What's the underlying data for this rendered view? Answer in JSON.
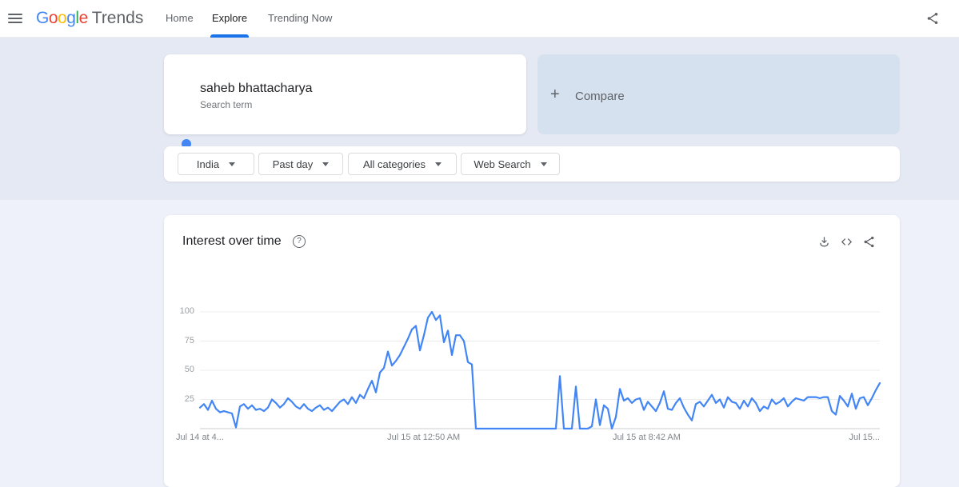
{
  "nav": {
    "brand": {
      "letters": [
        {
          "ch": "G",
          "color": "#4285F4"
        },
        {
          "ch": "o",
          "color": "#EA4335"
        },
        {
          "ch": "o",
          "color": "#FBBC05"
        },
        {
          "ch": "g",
          "color": "#4285F4"
        },
        {
          "ch": "l",
          "color": "#34A853"
        },
        {
          "ch": "e",
          "color": "#EA4335"
        }
      ],
      "product": "Trends"
    },
    "items": [
      {
        "label": "Home",
        "active": false
      },
      {
        "label": "Explore",
        "active": true
      },
      {
        "label": "Trending Now",
        "active": false
      }
    ]
  },
  "search_card": {
    "term": "saheb bhattacharya",
    "subtitle": "Search term",
    "dot_color": "#4285f4"
  },
  "compare_card": {
    "plus": "+",
    "label": "Compare"
  },
  "filters": [
    {
      "label": "India"
    },
    {
      "label": "Past day"
    },
    {
      "label": "All categories"
    },
    {
      "label": "Web Search"
    }
  ],
  "chart_card": {
    "title": "Interest over time",
    "help": "?",
    "action_icons": [
      "download-icon",
      "embed-icon",
      "share-icon"
    ]
  },
  "colors": {
    "accent_blue": "#1a73e8",
    "trend_line": "#4285f4",
    "compare_bg": "#d6e1ef",
    "page_bg_top": "#e5e9f4",
    "page_bg_bottom": "#eef1f9"
  },
  "chart_data": {
    "type": "line",
    "title": "Interest over time",
    "xlabel": "",
    "ylabel": "",
    "ylim": [
      0,
      100
    ],
    "grid": "horizontal",
    "legend_position": "none",
    "y_ticks": [
      100,
      75,
      50,
      25
    ],
    "x_ticks": [
      {
        "label": "Jul 14 at 4...",
        "pos": 0
      },
      {
        "label": "Jul 15 at 12:50 AM",
        "pos": 0.329
      },
      {
        "label": "Jul 15 at 8:42 AM",
        "pos": 0.657
      },
      {
        "label": "Jul 15...",
        "pos": 1
      }
    ],
    "series": [
      {
        "name": "saheb bhattacharya",
        "color": "#4285f4",
        "values": [
          18,
          21,
          16,
          24,
          17,
          14,
          15,
          14,
          13,
          1,
          19,
          21,
          17,
          20,
          16,
          17,
          15,
          18,
          25,
          22,
          18,
          21,
          26,
          23,
          19,
          17,
          21,
          17,
          15,
          18,
          20,
          16,
          18,
          15,
          19,
          23,
          25,
          21,
          27,
          22,
          29,
          26,
          34,
          41,
          31,
          48,
          52,
          66,
          54,
          58,
          63,
          70,
          77,
          85,
          88,
          67,
          80,
          95,
          100,
          93,
          97,
          74,
          84,
          63,
          80,
          80,
          75,
          57,
          55,
          0,
          0,
          0,
          0,
          0,
          0,
          0,
          0,
          0,
          0,
          0,
          0,
          0,
          0,
          0,
          0,
          0,
          0,
          0,
          0,
          0,
          45,
          0,
          0,
          0,
          36,
          0,
          0,
          0,
          2,
          25,
          3,
          20,
          17,
          0,
          10,
          34,
          24,
          26,
          22,
          25,
          26,
          16,
          23,
          19,
          15,
          22,
          32,
          17,
          16,
          22,
          26,
          18,
          12,
          7,
          21,
          23,
          19,
          24,
          29,
          22,
          25,
          18,
          27,
          23,
          22,
          17,
          24,
          19,
          26,
          22,
          15,
          19,
          17,
          25,
          21,
          23,
          26,
          19,
          23,
          26,
          25,
          24,
          27,
          27,
          27,
          26,
          27,
          27,
          15,
          12,
          28,
          24,
          19,
          30,
          17,
          26,
          27,
          20,
          26,
          33,
          39
        ]
      }
    ]
  }
}
